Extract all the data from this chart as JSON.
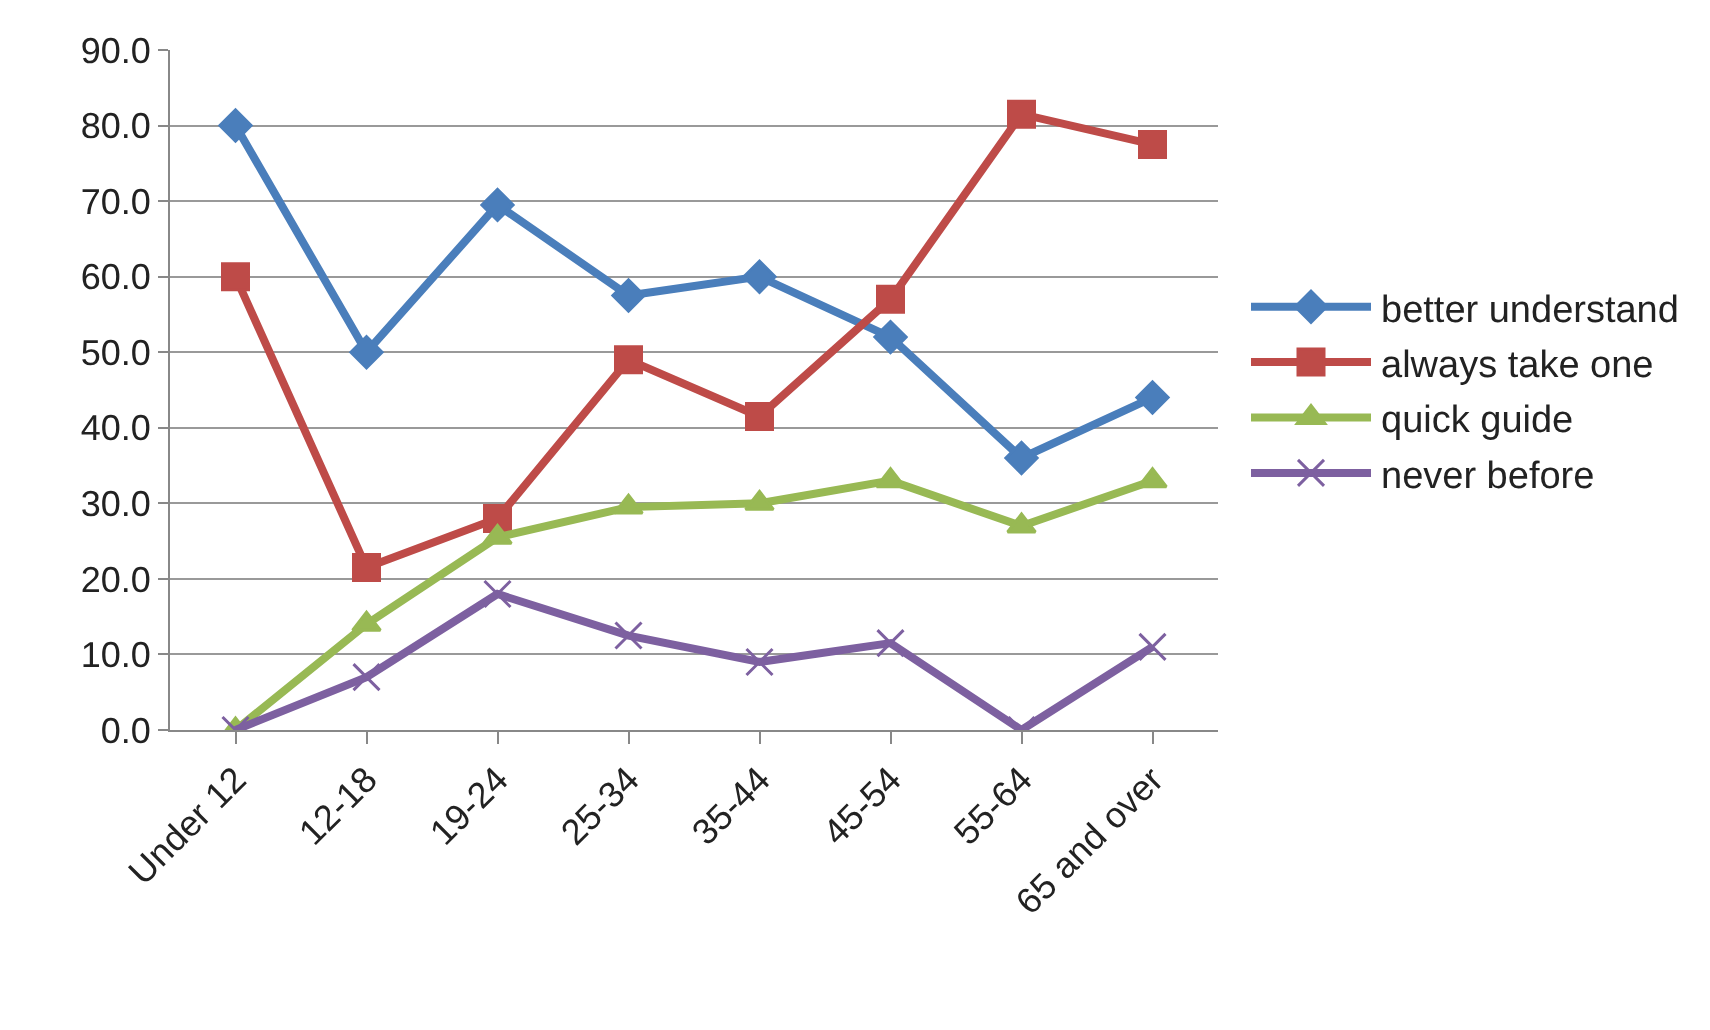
{
  "chart_data": {
    "type": "line",
    "categories": [
      "Under 12",
      "12-18",
      "19-24",
      "25-34",
      "35-44",
      "45-54",
      "55-64",
      "65 and over"
    ],
    "series": [
      {
        "name": "better understand",
        "color": "#4a7ebb",
        "marker": "diamond",
        "values": [
          80,
          50,
          69.5,
          57.5,
          60,
          52,
          36,
          44
        ]
      },
      {
        "name": "always take one",
        "color": "#be4b48",
        "marker": "square",
        "values": [
          60,
          21.5,
          28,
          49,
          41.5,
          57,
          81.5,
          77.5
        ]
      },
      {
        "name": "quick guide",
        "color": "#98b954",
        "marker": "triangle",
        "values": [
          0,
          14,
          25.5,
          29.5,
          30,
          33,
          27,
          33
        ]
      },
      {
        "name": "never before",
        "color": "#7d60a0",
        "marker": "cross",
        "values": [
          0,
          7,
          18,
          12.5,
          9,
          11.5,
          0,
          11
        ]
      }
    ],
    "ylim": [
      0,
      90
    ],
    "yticks": [
      {
        "value": 0,
        "label": "0.0"
      },
      {
        "value": 10,
        "label": "10.0"
      },
      {
        "value": 20,
        "label": "20.0"
      },
      {
        "value": 30,
        "label": "30.0"
      },
      {
        "value": 40,
        "label": "40.0"
      },
      {
        "value": 50,
        "label": "50.0"
      },
      {
        "value": 60,
        "label": "60.0"
      },
      {
        "value": 70,
        "label": "70.0"
      },
      {
        "value": 80,
        "label": "80.0"
      },
      {
        "value": 90,
        "label": "90.0"
      }
    ],
    "grid": "y",
    "legend": "right"
  }
}
